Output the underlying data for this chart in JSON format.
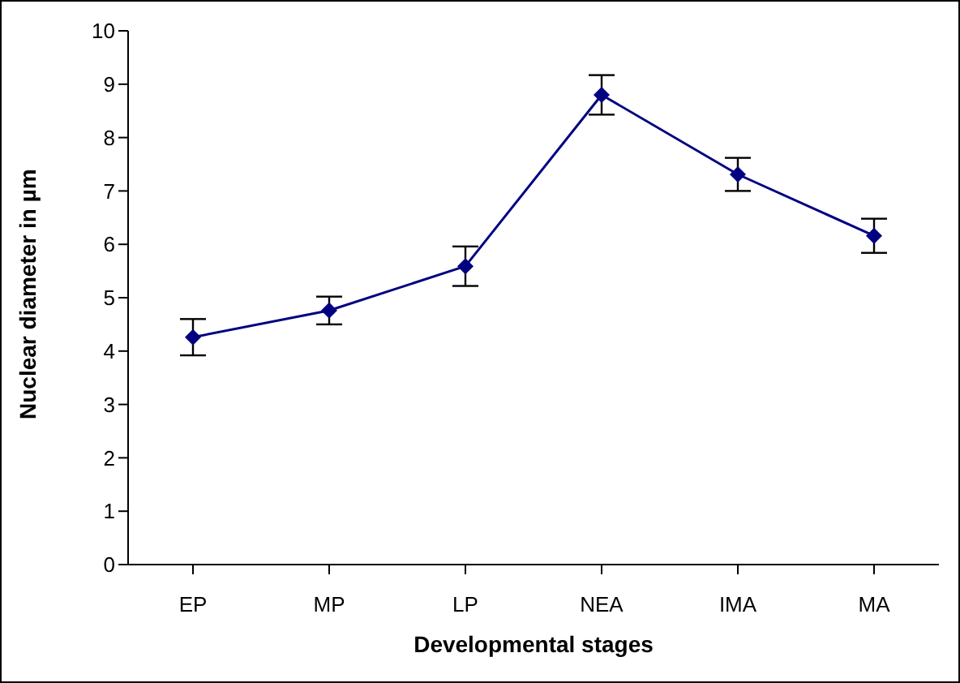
{
  "chart_data": {
    "type": "line",
    "xlabel": "Developmental stages",
    "ylabel": "Nuclear diameter in µm",
    "categories": [
      "EP",
      "MP",
      "LP",
      "NEA",
      "IMA",
      "MA"
    ],
    "series": [
      {
        "color": "#000080",
        "values": [
          4.26,
          4.76,
          5.59,
          8.8,
          7.31,
          6.16
        ],
        "errors": [
          0.34,
          0.26,
          0.37,
          0.37,
          0.31,
          0.32
        ]
      }
    ],
    "ylim": [
      0,
      10
    ],
    "yticks": [
      0,
      1,
      2,
      3,
      4,
      5,
      6,
      7,
      8,
      9,
      10
    ],
    "grid": false,
    "legend": false,
    "marker": "diamond",
    "line_style": "solid"
  }
}
